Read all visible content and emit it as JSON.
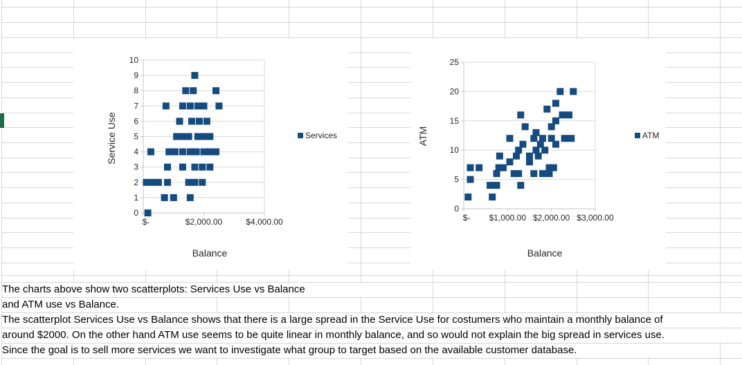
{
  "colors": {
    "marker_blue": "#154B80",
    "sheet_gridline": "#D6D6D6",
    "chart_axis_line": "#C6C6C6",
    "chart_gridline": "#D9D9D9",
    "row_indicator_green": "#1E6C41",
    "chart_text": "#262626",
    "note_text": "#000000"
  },
  "notes": {
    "rows": [
      {
        "text": "The charts above show two scatterplots: Services Use vs Balance"
      },
      {
        "text": "and ATM use vs Balance."
      },
      {
        "text": "The scatterplot Services Use vs Balance shows that there is a large spread in the Service Use for costumers who maintain a monthly balance of"
      },
      {
        "text": "around $2000. On the other hand ATM use seems to be quite linear in monthly balance, and so would not explain the big spread in services use."
      },
      {
        "text": "Since the goal is to sell more services we want to investigate what group to target based on the available customer database."
      }
    ]
  },
  "chart_data": [
    {
      "type": "scatter",
      "name": "services-vs-balance",
      "x_axis": {
        "title": "Balance",
        "min": 0,
        "max": 4000,
        "tick_values": [
          0,
          2000,
          4000
        ],
        "tick_labels": [
          "$-",
          "$2,000.00",
          "$4,000.00"
        ]
      },
      "y_axis": {
        "title": "Service Use",
        "min": 0,
        "max": 10,
        "tick_values": [
          0,
          1,
          2,
          3,
          4,
          5,
          6,
          7,
          8,
          9,
          10
        ],
        "tick_labels": [
          "0",
          "1",
          "2",
          "3",
          "4",
          "5",
          "6",
          "7",
          "8",
          "9",
          "10"
        ]
      },
      "legend": {
        "position": "right",
        "entries": [
          "Services"
        ]
      },
      "grid": "horizontal",
      "series": [
        {
          "name": "Services",
          "points": [
            [
              150,
              0
            ],
            [
              700,
              1
            ],
            [
              1000,
              1
            ],
            [
              1550,
              1
            ],
            [
              100,
              2
            ],
            [
              300,
              2
            ],
            [
              500,
              2
            ],
            [
              800,
              2
            ],
            [
              1500,
              2
            ],
            [
              1700,
              2
            ],
            [
              1950,
              2
            ],
            [
              800,
              3
            ],
            [
              1300,
              3
            ],
            [
              1700,
              3
            ],
            [
              1950,
              3
            ],
            [
              2200,
              3
            ],
            [
              250,
              4
            ],
            [
              850,
              4
            ],
            [
              1050,
              4
            ],
            [
              1300,
              4
            ],
            [
              1550,
              4
            ],
            [
              1750,
              4
            ],
            [
              2000,
              4
            ],
            [
              2200,
              4
            ],
            [
              2400,
              4
            ],
            [
              1100,
              5
            ],
            [
              1300,
              5
            ],
            [
              1500,
              5
            ],
            [
              1800,
              5
            ],
            [
              2000,
              5
            ],
            [
              2200,
              5
            ],
            [
              1200,
              6
            ],
            [
              1600,
              6
            ],
            [
              1850,
              6
            ],
            [
              2100,
              6
            ],
            [
              750,
              7
            ],
            [
              1300,
              7
            ],
            [
              1550,
              7
            ],
            [
              1800,
              7
            ],
            [
              2000,
              7
            ],
            [
              2500,
              7
            ],
            [
              1400,
              8
            ],
            [
              1650,
              8
            ],
            [
              2400,
              8
            ],
            [
              1700,
              9
            ]
          ]
        }
      ]
    },
    {
      "type": "scatter",
      "name": "atm-vs-balance",
      "x_axis": {
        "title": "Balance",
        "min": 0,
        "max": 3000,
        "tick_values": [
          0,
          1000,
          2000,
          3000
        ],
        "tick_labels": [
          "$-",
          "$1,000.00",
          "$2,000.00",
          "$3,000.00"
        ]
      },
      "y_axis": {
        "title": "ATM",
        "min": 0,
        "max": 25,
        "tick_values": [
          0,
          5,
          10,
          15,
          20,
          25
        ],
        "tick_labels": [
          "0",
          "5",
          "10",
          "15",
          "20",
          "25"
        ]
      },
      "legend": {
        "position": "right",
        "entries": [
          "ATM"
        ]
      },
      "grid": "horizontal",
      "series": [
        {
          "name": "ATM",
          "points": [
            [
              100,
              2
            ],
            [
              150,
              5
            ],
            [
              150,
              7
            ],
            [
              350,
              7
            ],
            [
              600,
              4
            ],
            [
              650,
              2
            ],
            [
              750,
              4
            ],
            [
              750,
              6
            ],
            [
              800,
              7
            ],
            [
              820,
              9
            ],
            [
              900,
              7
            ],
            [
              1050,
              8
            ],
            [
              1050,
              12
            ],
            [
              1150,
              6
            ],
            [
              1200,
              9
            ],
            [
              1250,
              6
            ],
            [
              1250,
              10
            ],
            [
              1300,
              4
            ],
            [
              1300,
              16
            ],
            [
              1350,
              11
            ],
            [
              1400,
              14
            ],
            [
              1500,
              8
            ],
            [
              1500,
              9
            ],
            [
              1600,
              6
            ],
            [
              1600,
              12
            ],
            [
              1650,
              10
            ],
            [
              1650,
              13
            ],
            [
              1700,
              9
            ],
            [
              1750,
              11
            ],
            [
              1800,
              6
            ],
            [
              1800,
              12
            ],
            [
              1850,
              10
            ],
            [
              1900,
              17
            ],
            [
              1950,
              6
            ],
            [
              1950,
              7
            ],
            [
              2000,
              12
            ],
            [
              2000,
              14
            ],
            [
              2050,
              7
            ],
            [
              2100,
              11
            ],
            [
              2100,
              15
            ],
            [
              2100,
              18
            ],
            [
              2200,
              20
            ],
            [
              2250,
              16
            ],
            [
              2300,
              12
            ],
            [
              2400,
              16
            ],
            [
              2450,
              12
            ],
            [
              2500,
              20
            ]
          ]
        }
      ]
    }
  ]
}
